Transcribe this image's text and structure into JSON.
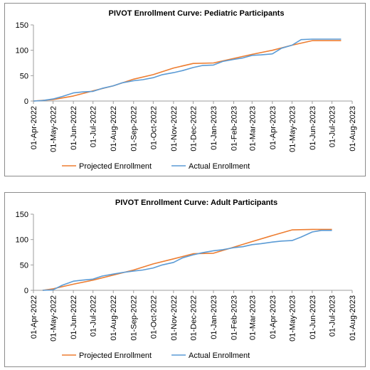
{
  "chart_data": [
    {
      "type": "line",
      "title": "PIVOT Enrollment Curve: Pediatric Participants",
      "xlabel": "",
      "ylabel": "",
      "ylim": [
        0,
        150
      ],
      "yticks": [
        0,
        50,
        100,
        150
      ],
      "grid": false,
      "legend": "bottom",
      "x_tick_labels": [
        "01-Apr-2022",
        "01-May-2022",
        "01-Jun-2022",
        "01-Jul-2022",
        "01-Aug-2022",
        "01-Sep-2022",
        "01-Oct-2022",
        "01-Nov-2022",
        "01-Dec-2022",
        "01-Jan-2023",
        "01-Feb-2023",
        "01-Mar-2023",
        "01-Apr-2023",
        "01-May-2023",
        "01-Jun-2023",
        "01-Jul-2023",
        "01-Aug-2023"
      ],
      "series": [
        {
          "name": "Projected Enrollment",
          "color": "#ED7D31",
          "x": [
            "2022-04-01",
            "2022-05-01",
            "2022-06-01",
            "2022-07-01",
            "2022-08-01",
            "2022-09-01",
            "2022-10-01",
            "2022-11-01",
            "2022-12-01",
            "2023-01-01",
            "2023-02-01",
            "2023-03-01",
            "2023-04-01",
            "2023-05-01",
            "2023-06-01",
            "2023-07-01",
            "2023-07-15"
          ],
          "y": [
            0,
            3,
            10,
            20,
            30,
            43,
            52,
            65,
            74,
            75,
            84,
            92,
            100,
            110,
            119,
            119,
            119
          ]
        },
        {
          "name": "Actual Enrollment",
          "color": "#5B9BD5",
          "x": [
            "2022-04-01",
            "2022-04-15",
            "2022-05-01",
            "2022-05-15",
            "2022-06-01",
            "2022-06-15",
            "2022-07-01",
            "2022-07-15",
            "2022-08-01",
            "2022-08-15",
            "2022-09-01",
            "2022-09-15",
            "2022-10-01",
            "2022-10-15",
            "2022-11-01",
            "2022-11-15",
            "2022-12-01",
            "2022-12-15",
            "2023-01-01",
            "2023-01-15",
            "2023-02-01",
            "2023-02-15",
            "2023-03-01",
            "2023-03-15",
            "2023-04-01",
            "2023-04-15",
            "2023-05-01",
            "2023-05-15",
            "2023-06-01",
            "2023-06-15",
            "2023-07-01",
            "2023-07-15"
          ],
          "y": [
            0,
            1,
            4,
            9,
            16,
            18,
            19,
            25,
            30,
            36,
            40,
            42,
            46,
            52,
            56,
            60,
            66,
            70,
            71,
            78,
            82,
            85,
            90,
            91,
            93,
            104,
            110,
            121,
            122,
            122,
            122,
            122
          ]
        }
      ]
    },
    {
      "type": "line",
      "title": "PIVOT Enrollment Curve: Adult Participants",
      "xlabel": "",
      "ylabel": "",
      "ylim": [
        0,
        150
      ],
      "yticks": [
        0,
        50,
        100,
        150
      ],
      "grid": false,
      "legend": "bottom",
      "x_tick_labels": [
        "01-Apr-2022",
        "01-May-2022",
        "01-Jun-2022",
        "01-Jul-2022",
        "01-Aug-2022",
        "01-Sep-2022",
        "01-Oct-2022",
        "01-Nov-2022",
        "01-Dec-2022",
        "01-Jan-2023",
        "01-Feb-2023",
        "01-Mar-2023",
        "01-Apr-2023",
        "01-May-2023",
        "01-Jun-2023",
        "01-Jul-2023",
        "01-Aug-2023"
      ],
      "series": [
        {
          "name": "Projected Enrollment",
          "color": "#ED7D31",
          "x": [
            "2022-04-15",
            "2022-05-01",
            "2022-06-01",
            "2022-07-01",
            "2022-08-01",
            "2022-09-01",
            "2022-10-01",
            "2022-11-01",
            "2022-12-01",
            "2023-01-01",
            "2023-02-01",
            "2023-03-01",
            "2023-04-01",
            "2023-05-01",
            "2023-06-01",
            "2023-07-01"
          ],
          "y": [
            0,
            3,
            12,
            20,
            30,
            40,
            52,
            62,
            72,
            73,
            85,
            96,
            108,
            119,
            120,
            120
          ]
        },
        {
          "name": "Actual Enrollment",
          "color": "#5B9BD5",
          "x": [
            "2022-04-15",
            "2022-05-01",
            "2022-05-15",
            "2022-06-01",
            "2022-06-15",
            "2022-07-01",
            "2022-07-15",
            "2022-08-01",
            "2022-08-15",
            "2022-09-01",
            "2022-09-15",
            "2022-10-01",
            "2022-10-15",
            "2022-11-01",
            "2022-11-15",
            "2022-12-01",
            "2022-12-15",
            "2023-01-01",
            "2023-01-15",
            "2023-02-01",
            "2023-02-15",
            "2023-03-01",
            "2023-03-15",
            "2023-04-01",
            "2023-04-15",
            "2023-05-01",
            "2023-05-15",
            "2023-06-01",
            "2023-06-15",
            "2023-07-01"
          ],
          "y": [
            0,
            1,
            10,
            18,
            20,
            22,
            28,
            32,
            35,
            38,
            40,
            44,
            50,
            55,
            64,
            70,
            74,
            78,
            80,
            84,
            86,
            90,
            92,
            95,
            97,
            98,
            105,
            115,
            118,
            118
          ]
        }
      ]
    }
  ]
}
